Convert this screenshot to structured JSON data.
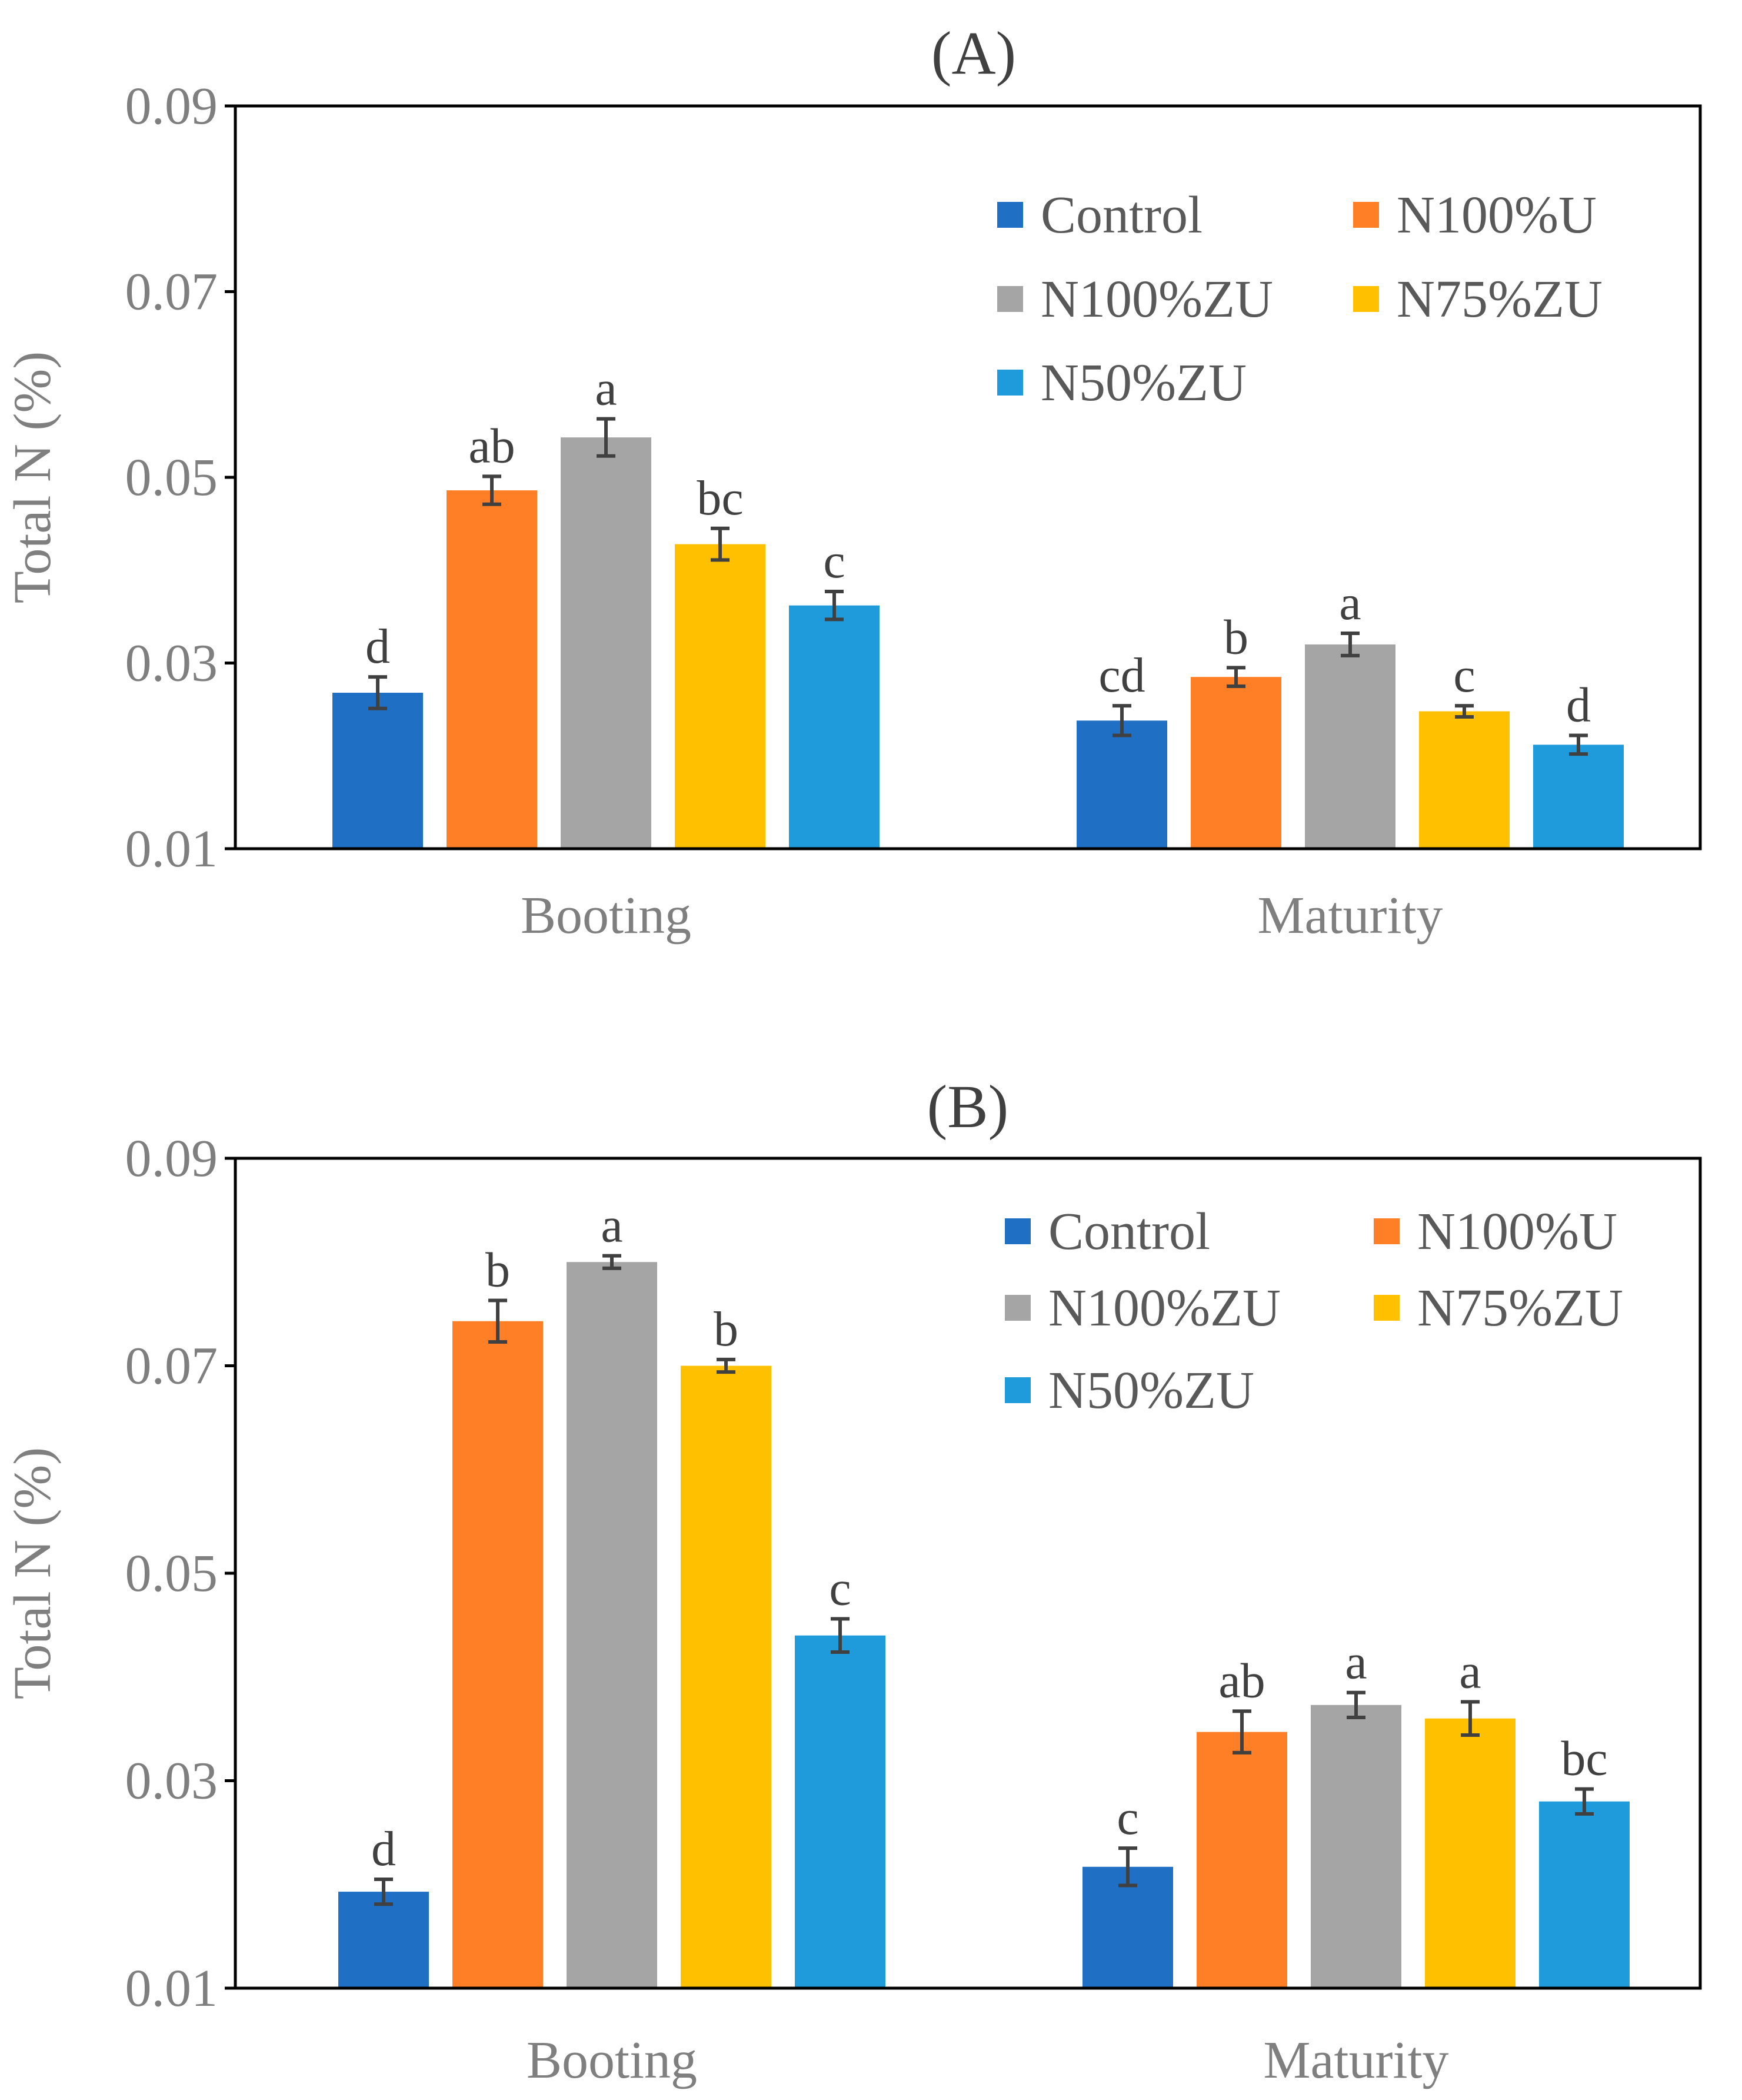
{
  "chart_data": [
    {
      "type": "bar",
      "title": "(A)",
      "xlabel": "",
      "ylabel": "Total N (%)",
      "ylim": [
        0.01,
        0.09
      ],
      "yticks": [
        "0.01",
        "0.03",
        "0.05",
        "0.07",
        "0.09"
      ],
      "categories": [
        "Booting",
        "Maturity"
      ],
      "legend_position": "top-right",
      "series": [
        {
          "name": "Control",
          "color": "#1F6FC5",
          "values": [
            0.0268,
            0.0238
          ],
          "errors": [
            0.0017,
            0.0016
          ],
          "labels": [
            "d",
            "cd"
          ]
        },
        {
          "name": "N100%U",
          "color": "#FF7F27",
          "values": [
            0.0486,
            0.0285
          ],
          "errors": [
            0.0015,
            0.001
          ],
          "labels": [
            "ab",
            "b"
          ]
        },
        {
          "name": "N100%ZU",
          "color": "#A5A5A5",
          "values": [
            0.0543,
            0.032
          ],
          "errors": [
            0.002,
            0.0012
          ],
          "labels": [
            "a",
            "a"
          ]
        },
        {
          "name": "N75%ZU",
          "color": "#FFC000",
          "values": [
            0.0428,
            0.0248
          ],
          "errors": [
            0.0017,
            0.0006
          ],
          "labels": [
            "bc",
            "c"
          ]
        },
        {
          "name": "N50%ZU",
          "color": "#1F9BDB",
          "values": [
            0.0362,
            0.0212
          ],
          "errors": [
            0.0015,
            0.001
          ],
          "labels": [
            "c",
            "d"
          ]
        }
      ]
    },
    {
      "type": "bar",
      "title": "(B)",
      "xlabel": "",
      "ylabel": "Total N (%)",
      "ylim": [
        0.01,
        0.09
      ],
      "yticks": [
        "0.01",
        "0.03",
        "0.05",
        "0.07",
        "0.09"
      ],
      "categories": [
        "Booting",
        "Maturity"
      ],
      "legend_position": "top-right",
      "series": [
        {
          "name": "Control",
          "color": "#1F6FC5",
          "values": [
            0.0193,
            0.0217
          ],
          "errors": [
            0.0012,
            0.0018
          ],
          "labels": [
            "d",
            "c"
          ]
        },
        {
          "name": "N100%U",
          "color": "#FF7F27",
          "values": [
            0.0743,
            0.0347
          ],
          "errors": [
            0.002,
            0.002
          ],
          "labels": [
            "b",
            "ab"
          ]
        },
        {
          "name": "N100%ZU",
          "color": "#A5A5A5",
          "values": [
            0.08,
            0.0373
          ],
          "errors": [
            0.0006,
            0.0012
          ],
          "labels": [
            "a",
            "a"
          ]
        },
        {
          "name": "N75%ZU",
          "color": "#FFC000",
          "values": [
            0.07,
            0.036
          ],
          "errors": [
            0.0006,
            0.0016
          ],
          "labels": [
            "b",
            "a"
          ]
        },
        {
          "name": "N50%ZU",
          "color": "#1F9BDB",
          "values": [
            0.044,
            0.028
          ],
          "errors": [
            0.0016,
            0.0012
          ],
          "labels": [
            "c",
            "bc"
          ]
        }
      ]
    }
  ]
}
